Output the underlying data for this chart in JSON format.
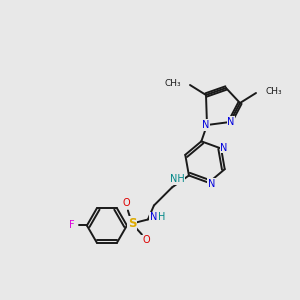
{
  "background_color": "#e8e8e8",
  "bond_color": "#1a1a1a",
  "nitrogen_color": "#0000dd",
  "nh_color": "#008888",
  "sulfur_color": "#ddaa00",
  "oxygen_color": "#dd0000",
  "fluorine_color": "#dd00dd",
  "carbon_color": "#1a1a1a",
  "figsize": [
    3.0,
    3.0
  ],
  "dpi": 100,
  "xlim": [
    0,
    300
  ],
  "ylim": [
    0,
    300
  ]
}
